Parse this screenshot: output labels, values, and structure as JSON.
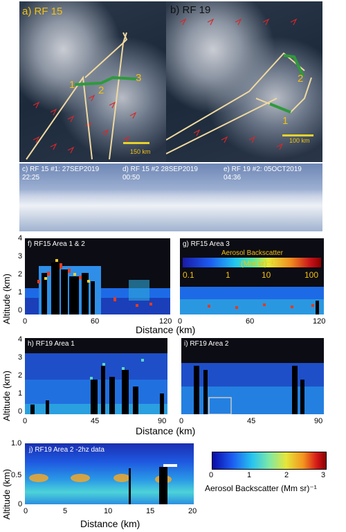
{
  "map": {
    "left_label": "a) RF 15",
    "right_label": "b) RF 19",
    "area_labels_left": [
      "1",
      "2",
      "3"
    ],
    "area_labels_right": [
      "2",
      "1"
    ],
    "scale_left": "150 km",
    "scale_right": "100 km"
  },
  "photos": [
    {
      "line1": "c) RF 15 #1: 27SEP2019",
      "line2": "22:25"
    },
    {
      "line1": "d) RF 15 #2 28SEP2019",
      "line2": "00:50"
    },
    {
      "line1": "e) RF 19 #2: 05OCT2019",
      "line2": "04:36"
    }
  ],
  "panel_f": {
    "label": "f) RF15 Area 1 & 2",
    "yticks": [
      "4",
      "3",
      "2",
      "1",
      "0"
    ],
    "xticks": [
      "0",
      "60",
      "120"
    ]
  },
  "panel_g": {
    "label": "g) RF15 Area 3",
    "xticks": [
      "0",
      "60",
      "120"
    ],
    "colorbar_title": "Aerosol Backscatter",
    "colorbar_unit": "(Mm sr)⁻¹",
    "colorbar_ticks": [
      "0.1",
      "1",
      "10",
      "100"
    ]
  },
  "row1_xlabel": "Distance (km)",
  "panel_h": {
    "label": "h) RF19 Area 1",
    "yticks": [
      "4",
      "3",
      "2",
      "1",
      "0"
    ],
    "xticks": [
      "0",
      "45",
      "90"
    ]
  },
  "panel_i": {
    "label": "i) RF19 Area 2",
    "xticks": [
      "0",
      "45",
      "90"
    ]
  },
  "row2_xlabel": "Distance (km)",
  "panel_j": {
    "label": "j) RF19 Area 2 -2hz data",
    "yticks": [
      "1.0",
      "0.5",
      "0"
    ],
    "xticks": [
      "0",
      "5",
      "10",
      "15",
      "20"
    ],
    "xlabel": "Distance (km)"
  },
  "colorbar_j": {
    "ticks": [
      "0",
      "1",
      "2",
      "3"
    ],
    "title": "Aerosol Backscatter (Mm sr)⁻¹"
  },
  "ylabel": "Altitude (km)"
}
